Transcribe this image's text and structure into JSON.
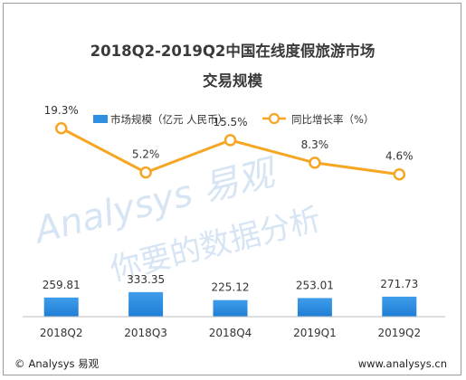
{
  "chart_data": {
    "type": "bar",
    "title_line1": "2018Q2-2019Q2中国在线度假旅游市场",
    "title_line2": "交易规模",
    "categories": [
      "2018Q2",
      "2018Q3",
      "2018Q4",
      "2019Q1",
      "2019Q2"
    ],
    "series": [
      {
        "name": "市场规模（亿元 人民币）",
        "kind": "bar",
        "color": "#2f8fe0",
        "values": [
          259.81,
          333.35,
          225.12,
          253.01,
          271.73
        ],
        "labels": [
          "259.81",
          "333.35",
          "225.12",
          "253.01",
          "271.73"
        ]
      },
      {
        "name": "同比增长率（%）",
        "kind": "line",
        "color": "#f5a623",
        "values": [
          19.3,
          5.2,
          15.5,
          8.3,
          4.6
        ],
        "labels": [
          "19.3%",
          "5.2%",
          "15.5%",
          "8.3%",
          "4.6%"
        ]
      }
    ],
    "ylim_bar": [
      0,
      1000
    ],
    "ylim_line": [
      -35,
      25
    ],
    "grid": false,
    "legend_position": "top"
  },
  "footer": {
    "brand": "Analysys 易观",
    "website": "www.analysys.cn",
    "copyright_symbol": "©"
  },
  "watermark": {
    "line1": "Analysys 易观",
    "line2": "你要的数据分析"
  }
}
